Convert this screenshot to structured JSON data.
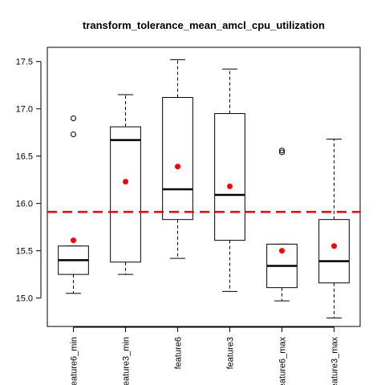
{
  "chart_data": {
    "type": "boxplot",
    "title": "transform_tolerance_mean_amcl_cpu_utilization",
    "xlabel": "",
    "ylabel": "",
    "ylim": [
      14.7,
      17.65
    ],
    "yticks": [
      "15.0",
      "15.5",
      "16.0",
      "16.5",
      "17.0",
      "17.5"
    ],
    "categories": [
      "feature6_min",
      "feature3_min",
      "feature6",
      "feature3",
      "feature6_max",
      "feature3_max"
    ],
    "boxes": [
      {
        "whisker_low": 15.05,
        "q1": 15.25,
        "median": 15.4,
        "q3": 15.55,
        "whisker_high": 15.55,
        "mean": 15.61,
        "outliers": [
          16.73,
          16.9
        ]
      },
      {
        "whisker_low": 15.25,
        "q1": 15.38,
        "median": 16.67,
        "q3": 16.81,
        "whisker_high": 17.15,
        "mean": 16.23,
        "outliers": []
      },
      {
        "whisker_low": 15.42,
        "q1": 15.83,
        "median": 16.15,
        "q3": 17.12,
        "whisker_high": 17.52,
        "mean": 16.39,
        "outliers": []
      },
      {
        "whisker_low": 15.07,
        "q1": 15.61,
        "median": 16.09,
        "q3": 16.95,
        "whisker_high": 17.42,
        "mean": 16.18,
        "outliers": []
      },
      {
        "whisker_low": 14.97,
        "q1": 15.11,
        "median": 15.34,
        "q3": 15.57,
        "whisker_high": 15.57,
        "mean": 15.5,
        "outliers": [
          16.54,
          16.56
        ]
      },
      {
        "whisker_low": 14.79,
        "q1": 15.16,
        "median": 15.39,
        "q3": 15.83,
        "whisker_high": 16.68,
        "mean": 15.55,
        "outliers": []
      }
    ],
    "reference_line": {
      "value": 15.91,
      "color": "#ff0000",
      "style": "dashed"
    },
    "mean_marker_color": "#ff0000",
    "grid": false,
    "legend": "none"
  }
}
